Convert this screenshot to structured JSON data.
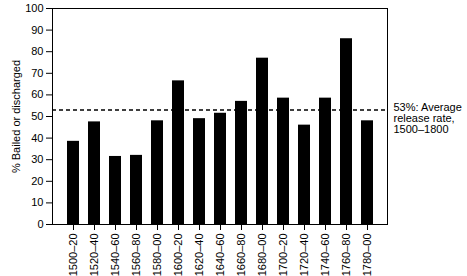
{
  "chart_data": {
    "type": "bar",
    "y_label": "% Bailed or discharged",
    "categories": [
      "1500–20",
      "1520–40",
      "1540–60",
      "1560–80",
      "1580–00",
      "1600–20",
      "1620–40",
      "1640–60",
      "1660–80",
      "1680–00",
      "1700–20",
      "1720–40",
      "1740–60",
      "1760–80",
      "1780–00"
    ],
    "values": [
      38.5,
      47.5,
      31.5,
      32,
      48,
      66.5,
      49,
      51.5,
      57,
      77,
      58.5,
      46,
      58.5,
      86,
      48
    ],
    "color": "#000000",
    "ylim": [
      0,
      100
    ],
    "yticks": [
      0,
      10,
      20,
      30,
      40,
      50,
      60,
      70,
      80,
      90,
      100
    ],
    "grid": false,
    "annotations": [
      {
        "y": 53,
        "text": "53%: Average release rate, 1500–1800",
        "line_style": "dashed"
      }
    ]
  }
}
